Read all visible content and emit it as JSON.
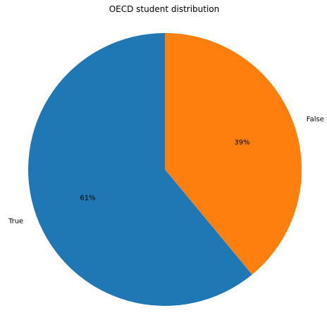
{
  "chart_data": {
    "type": "pie",
    "title": "OECD student distribution",
    "categories": [
      "True",
      "False"
    ],
    "values": [
      61,
      39
    ],
    "unit": "%",
    "colors": [
      "#1f77b4",
      "#ff7f0e"
    ],
    "start_angle_deg": 90,
    "direction": "counterclockwise",
    "slice_labels": [
      "True",
      "False"
    ],
    "pct_labels": [
      "61%",
      "39%"
    ]
  }
}
